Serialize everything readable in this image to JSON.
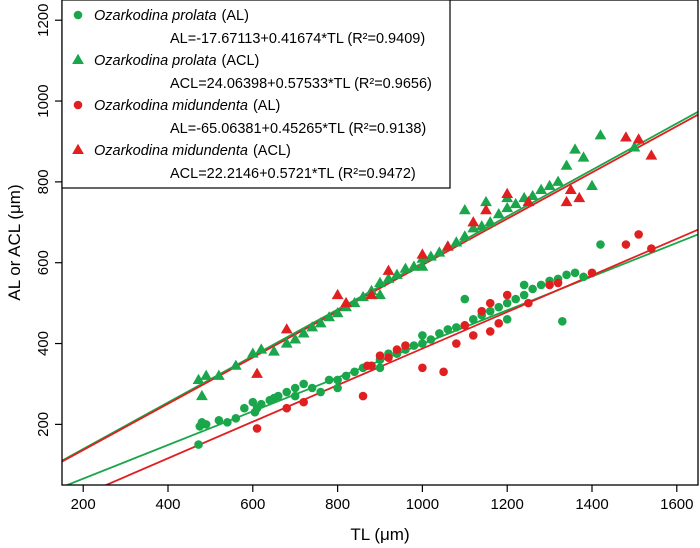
{
  "chart_data": {
    "type": "scatter",
    "xlabel": "TL (μm)",
    "ylabel": "AL or ACL (μm)",
    "xlim": [
      150,
      1650
    ],
    "ylim": [
      50,
      1250
    ],
    "xticks": [
      200,
      400,
      600,
      800,
      1000,
      1200,
      1400,
      1600
    ],
    "yticks": [
      200,
      400,
      600,
      800,
      1000,
      1200
    ],
    "legend_position": "top-left",
    "series": [
      {
        "id": "op_al",
        "species": "Ozarkodina prolata",
        "measure": "(AL)",
        "equation": "AL=-17.67113+0.41674*TL (R²=0.9409)",
        "marker": "circle",
        "color": "#1aa64a",
        "intercept": -17.67113,
        "slope": 0.41674,
        "points": [
          [
            472,
            150
          ],
          [
            475,
            195
          ],
          [
            480,
            205
          ],
          [
            490,
            200
          ],
          [
            520,
            210
          ],
          [
            540,
            205
          ],
          [
            560,
            215
          ],
          [
            580,
            240
          ],
          [
            600,
            255
          ],
          [
            605,
            230
          ],
          [
            610,
            240
          ],
          [
            620,
            250
          ],
          [
            640,
            260
          ],
          [
            650,
            265
          ],
          [
            660,
            270
          ],
          [
            680,
            280
          ],
          [
            700,
            290
          ],
          [
            720,
            300
          ],
          [
            740,
            290
          ],
          [
            760,
            280
          ],
          [
            780,
            310
          ],
          [
            800,
            310
          ],
          [
            820,
            320
          ],
          [
            840,
            330
          ],
          [
            860,
            340
          ],
          [
            880,
            345
          ],
          [
            900,
            360
          ],
          [
            920,
            375
          ],
          [
            940,
            375
          ],
          [
            960,
            385
          ],
          [
            980,
            395
          ],
          [
            1000,
            400
          ],
          [
            1020,
            410
          ],
          [
            1040,
            425
          ],
          [
            1060,
            435
          ],
          [
            1080,
            440
          ],
          [
            1100,
            445
          ],
          [
            1120,
            460
          ],
          [
            1140,
            470
          ],
          [
            1160,
            480
          ],
          [
            1180,
            490
          ],
          [
            1200,
            500
          ],
          [
            1220,
            510
          ],
          [
            1240,
            520
          ],
          [
            1260,
            535
          ],
          [
            1280,
            545
          ],
          [
            1300,
            555
          ],
          [
            1320,
            560
          ],
          [
            1340,
            570
          ],
          [
            1360,
            575
          ],
          [
            1380,
            565
          ],
          [
            1420,
            645
          ],
          [
            1330,
            455
          ],
          [
            1240,
            545
          ],
          [
            1100,
            510
          ],
          [
            1000,
            420
          ],
          [
            900,
            340
          ],
          [
            800,
            290
          ],
          [
            700,
            270
          ],
          [
            1200,
            460
          ]
        ]
      },
      {
        "id": "op_acl",
        "species": "Ozarkodina prolata",
        "measure": "(ACL)",
        "equation": "ACL=24.06398+0.57533*TL (R²=0.9656)",
        "marker": "triangle",
        "color": "#1aa64a",
        "intercept": 24.06398,
        "slope": 0.57533,
        "points": [
          [
            472,
            310
          ],
          [
            480,
            270
          ],
          [
            490,
            320
          ],
          [
            520,
            320
          ],
          [
            560,
            345
          ],
          [
            600,
            375
          ],
          [
            620,
            385
          ],
          [
            650,
            380
          ],
          [
            680,
            400
          ],
          [
            700,
            410
          ],
          [
            720,
            425
          ],
          [
            740,
            440
          ],
          [
            760,
            450
          ],
          [
            780,
            465
          ],
          [
            800,
            475
          ],
          [
            820,
            490
          ],
          [
            840,
            500
          ],
          [
            860,
            515
          ],
          [
            880,
            530
          ],
          [
            900,
            550
          ],
          [
            920,
            560
          ],
          [
            940,
            570
          ],
          [
            960,
            585
          ],
          [
            980,
            590
          ],
          [
            1000,
            610
          ],
          [
            1020,
            615
          ],
          [
            1040,
            625
          ],
          [
            1060,
            640
          ],
          [
            1080,
            650
          ],
          [
            1100,
            665
          ],
          [
            1120,
            685
          ],
          [
            1140,
            690
          ],
          [
            1160,
            700
          ],
          [
            1180,
            720
          ],
          [
            1200,
            735
          ],
          [
            1220,
            745
          ],
          [
            1240,
            760
          ],
          [
            1260,
            765
          ],
          [
            1280,
            780
          ],
          [
            1300,
            790
          ],
          [
            1320,
            800
          ],
          [
            1340,
            840
          ],
          [
            1360,
            880
          ],
          [
            1380,
            860
          ],
          [
            1400,
            790
          ],
          [
            1420,
            915
          ],
          [
            1500,
            885
          ],
          [
            1100,
            730
          ],
          [
            1150,
            750
          ],
          [
            1200,
            760
          ],
          [
            1000,
            590
          ],
          [
            900,
            520
          ]
        ]
      },
      {
        "id": "om_al",
        "species": "Ozarkodina midundenta",
        "measure": "(AL)",
        "equation": "AL=-65.06381+0.45265*TL (R²=0.9138)",
        "marker": "circle",
        "color": "#e02020",
        "intercept": -65.06381,
        "slope": 0.45265,
        "points": [
          [
            610,
            190
          ],
          [
            680,
            240
          ],
          [
            720,
            255
          ],
          [
            860,
            270
          ],
          [
            870,
            345
          ],
          [
            880,
            345
          ],
          [
            900,
            370
          ],
          [
            920,
            365
          ],
          [
            940,
            385
          ],
          [
            960,
            395
          ],
          [
            1000,
            340
          ],
          [
            1050,
            330
          ],
          [
            1080,
            400
          ],
          [
            1100,
            445
          ],
          [
            1120,
            420
          ],
          [
            1140,
            480
          ],
          [
            1160,
            500
          ],
          [
            1180,
            450
          ],
          [
            1200,
            520
          ],
          [
            1250,
            500
          ],
          [
            1300,
            545
          ],
          [
            1320,
            550
          ],
          [
            1400,
            575
          ],
          [
            1480,
            645
          ],
          [
            1510,
            670
          ],
          [
            1540,
            635
          ],
          [
            1160,
            430
          ]
        ]
      },
      {
        "id": "om_acl",
        "species": "Ozarkodina midundenta",
        "measure": "(ACL)",
        "equation": "ACL=22.2146+0.5721*TL (R²=0.9472)",
        "marker": "triangle",
        "color": "#e02020",
        "intercept": 22.2146,
        "slope": 0.5721,
        "points": [
          [
            610,
            325
          ],
          [
            680,
            435
          ],
          [
            800,
            520
          ],
          [
            820,
            500
          ],
          [
            880,
            520
          ],
          [
            920,
            580
          ],
          [
            1000,
            620
          ],
          [
            1060,
            640
          ],
          [
            1120,
            700
          ],
          [
            1150,
            730
          ],
          [
            1200,
            770
          ],
          [
            1250,
            750
          ],
          [
            1340,
            750
          ],
          [
            1350,
            780
          ],
          [
            1370,
            760
          ],
          [
            1480,
            910
          ],
          [
            1510,
            905
          ],
          [
            1540,
            865
          ]
        ]
      }
    ]
  }
}
